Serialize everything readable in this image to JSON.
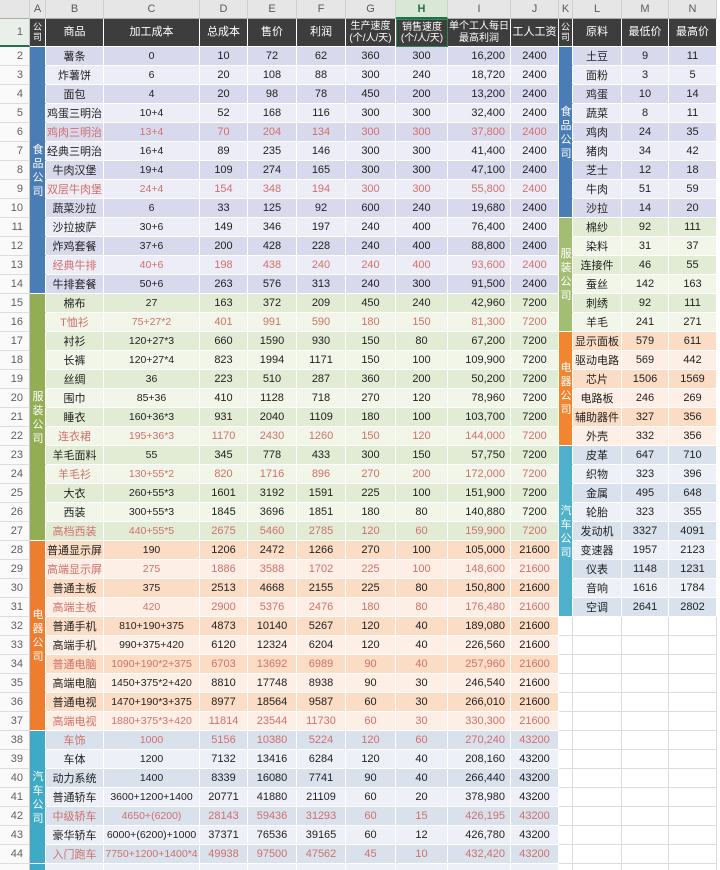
{
  "sheet": {
    "selected_column": "H",
    "selected_row": "1",
    "column_letters": [
      "A",
      "B",
      "C",
      "D",
      "E",
      "F",
      "G",
      "H",
      "I",
      "J",
      "K",
      "L",
      "M",
      "N"
    ],
    "headers": [
      {
        "col": "A",
        "label": "公司",
        "vertical": true
      },
      {
        "col": "B",
        "label": "商品"
      },
      {
        "col": "C",
        "label": "加工成本"
      },
      {
        "col": "D",
        "label": "总成本"
      },
      {
        "col": "E",
        "label": "售价"
      },
      {
        "col": "F",
        "label": "利润"
      },
      {
        "col": "G",
        "label": "生产速度\n(个/人/天)",
        "small": true
      },
      {
        "col": "H",
        "label": "销售速度\n(个/人/天)",
        "small": true,
        "selected": true
      },
      {
        "col": "I",
        "label": "单个工人每日\n最高利润",
        "small": true
      },
      {
        "col": "J",
        "label": "工人工资"
      },
      {
        "col": "K",
        "label": "公司",
        "vertical": true
      },
      {
        "col": "L",
        "label": "原料"
      },
      {
        "col": "M",
        "label": "最低价"
      },
      {
        "col": "N",
        "label": "最高价"
      }
    ],
    "company_bands_a": [
      {
        "label": "食品公司",
        "start": 2,
        "end": 14,
        "color": "#4A7CB5"
      },
      {
        "label": "服装公司",
        "start": 15,
        "end": 27,
        "color": "#92AD53"
      },
      {
        "label": "电器公司",
        "start": 28,
        "end": 37,
        "color": "#EE7E2F"
      },
      {
        "label": "汽车公司",
        "start": 38,
        "end": 44,
        "color": "#3FAAC6"
      }
    ],
    "company_bands_k": [
      {
        "label": "食品公司",
        "start": 2,
        "end": 10,
        "color": "#4A7CB5"
      },
      {
        "label": "服装公司",
        "start": 11,
        "end": 16,
        "color": "#A4BD74"
      },
      {
        "label": "电器公司",
        "start": 17,
        "end": 22,
        "color": "#F0862F"
      },
      {
        "label": "汽车公司",
        "start": 23,
        "end": 31,
        "color": "#4FB1CB"
      }
    ],
    "product_sections": [
      {
        "key": "food",
        "start": 2,
        "end": 14
      },
      {
        "key": "clothing",
        "start": 15,
        "end": 27
      },
      {
        "key": "electronics",
        "start": 28,
        "end": 37
      },
      {
        "key": "cars",
        "start": 38,
        "end": 44
      }
    ],
    "material_sections": [
      {
        "key": "food",
        "start": 2,
        "end": 10
      },
      {
        "key": "clothing",
        "start": 11,
        "end": 16
      },
      {
        "key": "electronics",
        "start": 17,
        "end": 22
      },
      {
        "key": "cars",
        "start": 23,
        "end": 31
      }
    ],
    "stripes": {
      "food": [
        "#D9D9ED",
        "#EDEDF7"
      ],
      "clothing": [
        "#E2ECD4",
        "#F1F6E9"
      ],
      "electronics": [
        "#FBDCC5",
        "#FDEFE5"
      ],
      "cars": [
        "#D8E1EC",
        "#EDF1F7"
      ]
    },
    "colors": {
      "accent_green": "#217346",
      "header_bg": "#3D3D3D",
      "red_text": "#D0706B"
    },
    "products": [
      {
        "row": 2,
        "name": "薯条",
        "cost": "0",
        "total": "10",
        "price": "72",
        "profit": "62",
        "prod": "360",
        "sale": "300",
        "max_profit": "16,200",
        "wage": "2400",
        "red": false
      },
      {
        "row": 3,
        "name": "炸薯饼",
        "cost": "6",
        "total": "20",
        "price": "108",
        "profit": "88",
        "prod": "300",
        "sale": "240",
        "max_profit": "18,720",
        "wage": "2400",
        "red": false
      },
      {
        "row": 4,
        "name": "面包",
        "cost": "4",
        "total": "20",
        "price": "98",
        "profit": "78",
        "prod": "450",
        "sale": "200",
        "max_profit": "13,200",
        "wage": "2400",
        "red": false
      },
      {
        "row": 5,
        "name": "鸡蛋三明治",
        "cost": "10+4",
        "total": "52",
        "price": "168",
        "profit": "116",
        "prod": "300",
        "sale": "300",
        "max_profit": "32,400",
        "wage": "2400",
        "red": false
      },
      {
        "row": 6,
        "name": "鸡肉三明治",
        "cost": "13+4",
        "total": "70",
        "price": "204",
        "profit": "134",
        "prod": "300",
        "sale": "300",
        "max_profit": "37,800",
        "wage": "2400",
        "red": true
      },
      {
        "row": 7,
        "name": "经典三明治",
        "cost": "16+4",
        "total": "89",
        "price": "235",
        "profit": "146",
        "prod": "300",
        "sale": "300",
        "max_profit": "41,400",
        "wage": "2400",
        "red": false
      },
      {
        "row": 8,
        "name": "牛肉汉堡",
        "cost": "19+4",
        "total": "109",
        "price": "274",
        "profit": "165",
        "prod": "300",
        "sale": "300",
        "max_profit": "47,100",
        "wage": "2400",
        "red": false
      },
      {
        "row": 9,
        "name": "双层牛肉堡",
        "cost": "24+4",
        "total": "154",
        "price": "348",
        "profit": "194",
        "prod": "300",
        "sale": "300",
        "max_profit": "55,800",
        "wage": "2400",
        "red": true
      },
      {
        "row": 10,
        "name": "蔬菜沙拉",
        "cost": "6",
        "total": "33",
        "price": "125",
        "profit": "92",
        "prod": "600",
        "sale": "240",
        "max_profit": "19,680",
        "wage": "2400",
        "red": false
      },
      {
        "row": 11,
        "name": "沙拉披萨",
        "cost": "30+6",
        "total": "149",
        "price": "346",
        "profit": "197",
        "prod": "240",
        "sale": "400",
        "max_profit": "76,400",
        "wage": "2400",
        "red": false
      },
      {
        "row": 12,
        "name": "炸鸡套餐",
        "cost": "37+6",
        "total": "200",
        "price": "428",
        "profit": "228",
        "prod": "240",
        "sale": "400",
        "max_profit": "88,800",
        "wage": "2400",
        "red": false
      },
      {
        "row": 13,
        "name": "经典牛排",
        "cost": "40+6",
        "total": "198",
        "price": "438",
        "profit": "240",
        "prod": "240",
        "sale": "400",
        "max_profit": "93,600",
        "wage": "2400",
        "red": true
      },
      {
        "row": 14,
        "name": "牛排套餐",
        "cost": "50+6",
        "total": "263",
        "price": "576",
        "profit": "313",
        "prod": "240",
        "sale": "300",
        "max_profit": "91,500",
        "wage": "2400",
        "red": false
      },
      {
        "row": 15,
        "name": "棉布",
        "cost": "27",
        "total": "163",
        "price": "372",
        "profit": "209",
        "prod": "450",
        "sale": "240",
        "max_profit": "42,960",
        "wage": "7200",
        "red": false
      },
      {
        "row": 16,
        "name": "T恤衫",
        "cost": "75+27*2",
        "total": "401",
        "price": "991",
        "profit": "590",
        "prod": "180",
        "sale": "150",
        "max_profit": "81,300",
        "wage": "7200",
        "red": true
      },
      {
        "row": 17,
        "name": "衬衫",
        "cost": "120+27*3",
        "total": "660",
        "price": "1590",
        "profit": "930",
        "prod": "150",
        "sale": "80",
        "max_profit": "67,200",
        "wage": "7200",
        "red": false
      },
      {
        "row": 18,
        "name": "长裤",
        "cost": "120+27*4",
        "total": "823",
        "price": "1994",
        "profit": "1171",
        "prod": "150",
        "sale": "100",
        "max_profit": "109,900",
        "wage": "7200",
        "red": false
      },
      {
        "row": 19,
        "name": "丝绸",
        "cost": "36",
        "total": "223",
        "price": "510",
        "profit": "287",
        "prod": "360",
        "sale": "200",
        "max_profit": "50,200",
        "wage": "7200",
        "red": false
      },
      {
        "row": 20,
        "name": "围巾",
        "cost": "85+36",
        "total": "410",
        "price": "1128",
        "profit": "718",
        "prod": "270",
        "sale": "120",
        "max_profit": "78,960",
        "wage": "7200",
        "red": false
      },
      {
        "row": 21,
        "name": "睡衣",
        "cost": "160+36*3",
        "total": "931",
        "price": "2040",
        "profit": "1109",
        "prod": "180",
        "sale": "100",
        "max_profit": "103,700",
        "wage": "7200",
        "red": false
      },
      {
        "row": 22,
        "name": "连衣裙",
        "cost": "195+36*3",
        "total": "1170",
        "price": "2430",
        "profit": "1260",
        "prod": "150",
        "sale": "120",
        "max_profit": "144,000",
        "wage": "7200",
        "red": true
      },
      {
        "row": 23,
        "name": "羊毛面料",
        "cost": "55",
        "total": "345",
        "price": "778",
        "profit": "433",
        "prod": "300",
        "sale": "150",
        "max_profit": "57,750",
        "wage": "7200",
        "red": false
      },
      {
        "row": 24,
        "name": "羊毛衫",
        "cost": "130+55*2",
        "total": "820",
        "price": "1716",
        "profit": "896",
        "prod": "270",
        "sale": "200",
        "max_profit": "172,000",
        "wage": "7200",
        "red": true
      },
      {
        "row": 25,
        "name": "大衣",
        "cost": "260+55*3",
        "total": "1601",
        "price": "3192",
        "profit": "1591",
        "prod": "225",
        "sale": "100",
        "max_profit": "151,900",
        "wage": "7200",
        "red": false
      },
      {
        "row": 26,
        "name": "西装",
        "cost": "300+55*3",
        "total": "1845",
        "price": "3696",
        "profit": "1851",
        "prod": "180",
        "sale": "80",
        "max_profit": "140,880",
        "wage": "7200",
        "red": false
      },
      {
        "row": 27,
        "name": "高档西装",
        "cost": "440+55*5",
        "total": "2675",
        "price": "5460",
        "profit": "2785",
        "prod": "120",
        "sale": "60",
        "max_profit": "159,900",
        "wage": "7200",
        "red": true
      },
      {
        "row": 28,
        "name": "普通显示屏",
        "cost": "190",
        "total": "1206",
        "price": "2472",
        "profit": "1266",
        "prod": "270",
        "sale": "100",
        "max_profit": "105,000",
        "wage": "21600",
        "red": false
      },
      {
        "row": 29,
        "name": "高端显示屏",
        "cost": "275",
        "total": "1886",
        "price": "3588",
        "profit": "1702",
        "prod": "225",
        "sale": "100",
        "max_profit": "148,600",
        "wage": "21600",
        "red": true
      },
      {
        "row": 30,
        "name": "普通主板",
        "cost": "375",
        "total": "2513",
        "price": "4668",
        "profit": "2155",
        "prod": "225",
        "sale": "80",
        "max_profit": "150,800",
        "wage": "21600",
        "red": false
      },
      {
        "row": 31,
        "name": "高端主板",
        "cost": "420",
        "total": "2900",
        "price": "5376",
        "profit": "2476",
        "prod": "180",
        "sale": "80",
        "max_profit": "176,480",
        "wage": "21600",
        "red": true
      },
      {
        "row": 32,
        "name": "普通手机",
        "cost": "810+190+375",
        "total": "4873",
        "price": "10140",
        "profit": "5267",
        "prod": "120",
        "sale": "40",
        "max_profit": "189,080",
        "wage": "21600",
        "red": false
      },
      {
        "row": 33,
        "name": "高端手机",
        "cost": "990+375+420",
        "total": "6120",
        "price": "12324",
        "profit": "6204",
        "prod": "120",
        "sale": "40",
        "max_profit": "226,560",
        "wage": "21600",
        "red": false
      },
      {
        "row": 34,
        "name": "普通电脑",
        "cost": "1090+190*2+375",
        "total": "6703",
        "price": "13692",
        "profit": "6989",
        "prod": "90",
        "sale": "40",
        "max_profit": "257,960",
        "wage": "21600",
        "red": true
      },
      {
        "row": 35,
        "name": "高端电脑",
        "cost": "1450+375*2+420",
        "total": "8810",
        "price": "17748",
        "profit": "8938",
        "prod": "90",
        "sale": "30",
        "max_profit": "246,540",
        "wage": "21600",
        "red": false
      },
      {
        "row": 36,
        "name": "普通电视",
        "cost": "1470+190*3+375",
        "total": "8977",
        "price": "18564",
        "profit": "9587",
        "prod": "60",
        "sale": "30",
        "max_profit": "266,010",
        "wage": "21600",
        "red": false
      },
      {
        "row": 37,
        "name": "高端电视",
        "cost": "1880+375*3+420",
        "total": "11814",
        "price": "23544",
        "profit": "11730",
        "prod": "60",
        "sale": "30",
        "max_profit": "330,300",
        "wage": "21600",
        "red": true
      },
      {
        "row": 38,
        "name": "车饰",
        "cost": "1000",
        "total": "5156",
        "price": "10380",
        "profit": "5224",
        "prod": "120",
        "sale": "60",
        "max_profit": "270,240",
        "wage": "43200",
        "red": true
      },
      {
        "row": 39,
        "name": "车体",
        "cost": "1200",
        "total": "7132",
        "price": "13416",
        "profit": "6284",
        "prod": "120",
        "sale": "40",
        "max_profit": "208,160",
        "wage": "43200",
        "red": false
      },
      {
        "row": 40,
        "name": "动力系统",
        "cost": "1400",
        "total": "8339",
        "price": "16080",
        "profit": "7741",
        "prod": "90",
        "sale": "40",
        "max_profit": "266,440",
        "wage": "43200",
        "red": false
      },
      {
        "row": 41,
        "name": "普通轿车",
        "cost": "3600+1200+1400",
        "total": "20771",
        "price": "41880",
        "profit": "21109",
        "prod": "60",
        "sale": "20",
        "max_profit": "378,980",
        "wage": "43200",
        "red": false
      },
      {
        "row": 42,
        "name": "中级轿车",
        "cost": "4650+(6200)",
        "total": "28143",
        "price": "59436",
        "profit": "31293",
        "prod": "60",
        "sale": "15",
        "max_profit": "426,195",
        "wage": "43200",
        "red": true
      },
      {
        "row": 43,
        "name": "豪华轿车",
        "cost": "6000+(6200)+1000",
        "total": "37371",
        "price": "76536",
        "profit": "39165",
        "prod": "60",
        "sale": "12",
        "max_profit": "426,780",
        "wage": "43200",
        "red": false
      },
      {
        "row": 44,
        "name": "入门跑车",
        "cost": "7750+1200+1400*4",
        "total": "49938",
        "price": "97500",
        "profit": "47562",
        "prod": "45",
        "sale": "10",
        "max_profit": "432,420",
        "wage": "43200",
        "red": true
      }
    ],
    "materials": [
      {
        "row": 2,
        "name": "土豆",
        "min": "9",
        "max": "11"
      },
      {
        "row": 3,
        "name": "面粉",
        "min": "3",
        "max": "5"
      },
      {
        "row": 4,
        "name": "鸡蛋",
        "min": "10",
        "max": "14"
      },
      {
        "row": 5,
        "name": "蔬菜",
        "min": "8",
        "max": "11"
      },
      {
        "row": 6,
        "name": "鸡肉",
        "min": "24",
        "max": "35"
      },
      {
        "row": 7,
        "name": "猪肉",
        "min": "34",
        "max": "42"
      },
      {
        "row": 8,
        "name": "芝士",
        "min": "12",
        "max": "18"
      },
      {
        "row": 9,
        "name": "牛肉",
        "min": "51",
        "max": "59"
      },
      {
        "row": 10,
        "name": "沙拉",
        "min": "14",
        "max": "20"
      },
      {
        "row": 11,
        "name": "棉纱",
        "min": "92",
        "max": "111"
      },
      {
        "row": 12,
        "name": "染料",
        "min": "31",
        "max": "37"
      },
      {
        "row": 13,
        "name": "连接件",
        "min": "46",
        "max": "55"
      },
      {
        "row": 14,
        "name": "蚕丝",
        "min": "142",
        "max": "163"
      },
      {
        "row": 15,
        "name": "刺绣",
        "min": "92",
        "max": "111"
      },
      {
        "row": 16,
        "name": "羊毛",
        "min": "241",
        "max": "271"
      },
      {
        "row": 17,
        "name": "显示面板",
        "min": "579",
        "max": "611"
      },
      {
        "row": 18,
        "name": "驱动电路",
        "min": "569",
        "max": "442"
      },
      {
        "row": 19,
        "name": "芯片",
        "min": "1506",
        "max": "1569"
      },
      {
        "row": 20,
        "name": "电路板",
        "min": "246",
        "max": "269"
      },
      {
        "row": 21,
        "name": "辅助器件",
        "min": "327",
        "max": "356"
      },
      {
        "row": 22,
        "name": "外壳",
        "min": "332",
        "max": "356"
      },
      {
        "row": 23,
        "name": "皮革",
        "min": "647",
        "max": "710"
      },
      {
        "row": 24,
        "name": "织物",
        "min": "323",
        "max": "396"
      },
      {
        "row": 25,
        "name": "金属",
        "min": "495",
        "max": "648"
      },
      {
        "row": 26,
        "name": "轮胎",
        "min": "323",
        "max": "355"
      },
      {
        "row": 27,
        "name": "发动机",
        "min": "3327",
        "max": "4091"
      },
      {
        "row": 28,
        "name": "变速器",
        "min": "1957",
        "max": "2123"
      },
      {
        "row": 29,
        "name": "仪表",
        "min": "1148",
        "max": "1231"
      },
      {
        "row": 30,
        "name": "音响",
        "min": "1616",
        "max": "1784"
      },
      {
        "row": 31,
        "name": "空调",
        "min": "2641",
        "max": "2802"
      }
    ]
  }
}
